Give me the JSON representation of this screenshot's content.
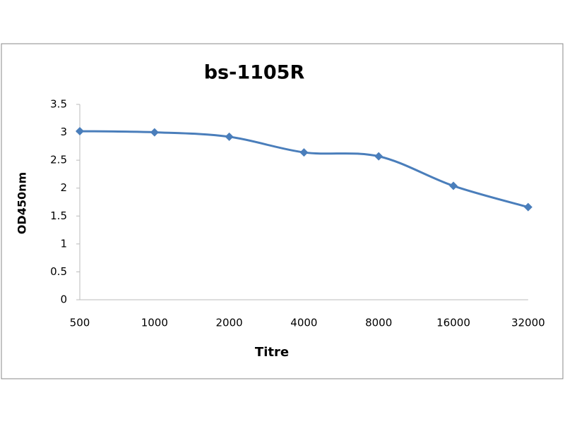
{
  "chart_data": {
    "type": "line",
    "title": "bs-1105R",
    "x_label": "Titre",
    "y_label": "OD450nm",
    "categories": [
      "500",
      "1000",
      "2000",
      "4000",
      "8000",
      "16000",
      "32000"
    ],
    "values": [
      3.02,
      3.0,
      2.92,
      2.64,
      2.57,
      2.04,
      1.66
    ],
    "color": "#4a7ebb",
    "ylim": [
      0,
      3.5
    ],
    "yticks": [
      0,
      0.5,
      1,
      1.5,
      2,
      2.5,
      3,
      3.5
    ],
    "grid": false
  }
}
